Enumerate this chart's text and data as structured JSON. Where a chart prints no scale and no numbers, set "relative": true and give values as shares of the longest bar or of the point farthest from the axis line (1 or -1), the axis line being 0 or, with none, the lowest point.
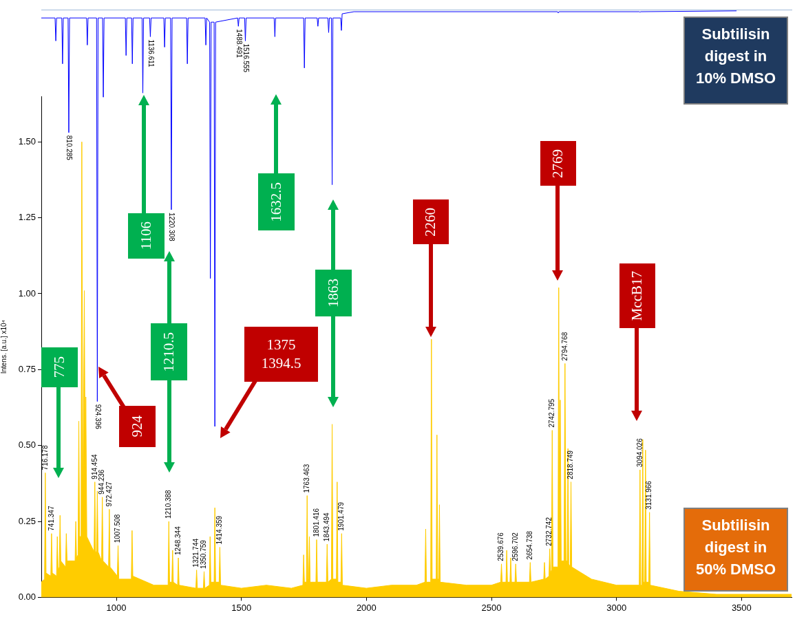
{
  "chart_data": [
    {
      "type": "line",
      "relative": true,
      "tick_labels": false,
      "xlim": [
        700,
        3700
      ],
      "series": [
        {
          "color": "#0000ff",
          "x": [
            700,
            755,
            758,
            761,
            782,
            785,
            788,
            807,
            810,
            813,
            881,
            884,
            887,
            921,
            924,
            927,
            945,
            948,
            951,
            1036,
            1039,
            1042,
            1061,
            1064,
            1067,
            1103,
            1106,
            1109,
            1133,
            1136,
            1139,
            1190,
            1193,
            1196,
            1217,
            1220,
            1223,
            1281,
            1284,
            1287,
            1355,
            1358,
            1361,
            1373,
            1376,
            1379,
            1391,
            1394,
            1397,
            1485,
            1488,
            1491,
            1513,
            1516,
            1519,
            1631,
            1634,
            1637,
            1749,
            1752,
            1755,
            1803,
            1806,
            1809,
            1846,
            1849,
            1852,
            1860,
            1863,
            1866,
            1897,
            1900,
            1903,
            1950,
            2764,
            2767,
            2770,
            3091,
            3094,
            3097,
            3480
          ],
          "values": [
            -0.02,
            -0.02,
            -0.075,
            -0.02,
            -0.02,
            -0.13,
            -0.02,
            -0.02,
            -0.295,
            -0.02,
            -0.02,
            -0.085,
            -0.02,
            -0.02,
            -0.94,
            -0.02,
            -0.02,
            -0.21,
            -0.02,
            -0.02,
            -0.11,
            -0.02,
            -0.02,
            -0.13,
            -0.02,
            -0.02,
            -0.2,
            -0.02,
            -0.02,
            -0.065,
            -0.02,
            -0.02,
            -0.09,
            -0.02,
            -0.02,
            -0.48,
            -0.02,
            -0.02,
            -0.13,
            -0.02,
            -0.02,
            -0.085,
            -0.02,
            -0.03,
            -0.645,
            -0.03,
            -0.03,
            -1,
            -0.03,
            -0.02,
            -0.04,
            -0.02,
            -0.02,
            -0.075,
            -0.02,
            -0.02,
            -0.065,
            -0.02,
            -0.02,
            -0.14,
            -0.02,
            -0.02,
            -0.04,
            -0.02,
            -0.02,
            -0.055,
            -0.02,
            -0.02,
            -0.42,
            -0.02,
            -0.02,
            -0.05,
            -0.01,
            -0.005,
            -0.005,
            -0.008,
            -0.005,
            -0.005,
            -0.006,
            -0.005,
            -0.003
          ]
        }
      ],
      "annotations": [
        {
          "text": "810.285",
          "x": 810,
          "y": -0.295
        },
        {
          "text": "924.396",
          "x": 924,
          "y": -0.94
        },
        {
          "text": "1136.611",
          "x": 1136,
          "y": -0.065
        },
        {
          "text": "1220.308",
          "x": 1220,
          "y": -0.48
        },
        {
          "text": "1488.491",
          "x": 1488,
          "y": -0.04
        },
        {
          "text": "1516.555",
          "x": 1516,
          "y": -0.075
        }
      ]
    },
    {
      "type": "area",
      "ylabel": "Intens. [a.u.] x10⁴",
      "xlim": [
        700,
        3700
      ],
      "xticks": [
        1000,
        1500,
        2000,
        2500,
        3000,
        3500
      ],
      "ylim": [
        0,
        1.65
      ],
      "yticks": [
        {
          "value": 0,
          "label": "0.00"
        },
        {
          "value": 0.25,
          "label": "0.25"
        },
        {
          "value": 0.5,
          "label": "0.50"
        },
        {
          "value": 0.75,
          "label": "0.75"
        },
        {
          "value": 1,
          "label": "1.00"
        },
        {
          "value": 1.25,
          "label": "1.25"
        },
        {
          "value": 1.5,
          "label": "1.50"
        }
      ],
      "series": [
        {
          "color": "#ffcc00",
          "x": [
            700,
            713,
            716,
            719,
            738,
            741,
            744,
            761,
            764,
            767,
            772,
            775,
            778,
            797,
            800,
            803,
            835,
            838,
            841,
            847,
            850,
            853,
            859,
            862,
            866,
            872,
            876,
            878,
            882,
            911,
            914,
            917,
            921,
            924,
            927,
            941,
            944,
            947,
            969,
            972,
            975,
            1004,
            1007,
            1010,
            1060,
            1063,
            1066,
            1150,
            1207,
            1210,
            1213,
            1222,
            1225,
            1228,
            1245,
            1248,
            1251,
            1318,
            1321,
            1324,
            1348,
            1351,
            1354,
            1372,
            1375,
            1378,
            1391,
            1394,
            1397,
            1411,
            1414,
            1417,
            1500,
            1600,
            1700,
            1746,
            1749,
            1752,
            1760,
            1763,
            1766,
            1769,
            1772,
            1775,
            1798,
            1801,
            1804,
            1840,
            1843,
            1846,
            1860,
            1863,
            1866,
            1880,
            1883,
            1886,
            1898,
            1901,
            1904,
            2000,
            2100,
            2200,
            2234,
            2237,
            2240,
            2257,
            2260,
            2263,
            2279,
            2282,
            2285,
            2289,
            2292,
            2295,
            2400,
            2500,
            2537,
            2540,
            2543,
            2558,
            2561,
            2564,
            2574,
            2577,
            2580,
            2594,
            2597,
            2600,
            2652,
            2655,
            2658,
            2709,
            2712,
            2715,
            2730,
            2733,
            2736,
            2740,
            2743,
            2746,
            2766,
            2769,
            2772,
            2775,
            2779,
            2790,
            2794,
            2798,
            2803,
            2806,
            2809,
            2815,
            2818,
            2821,
            2900,
            3000,
            3091,
            3094,
            3097,
            3102,
            3105,
            3108,
            3113,
            3116,
            3119,
            3129,
            3132,
            3135,
            3250,
            3400,
            3700
          ],
          "values": [
            0.05,
            0.06,
            0.41,
            0.08,
            0.07,
            0.21,
            0.08,
            0.07,
            0.2,
            0.09,
            0.1,
            0.27,
            0.12,
            0.1,
            0.21,
            0.12,
            0.12,
            0.25,
            0.13,
            0.14,
            0.58,
            0.2,
            0.2,
            1.5,
            0.25,
            1.01,
            0.3,
            0.66,
            0.2,
            0.15,
            0.38,
            0.15,
            0.15,
            0.35,
            0.15,
            0.12,
            0.33,
            0.12,
            0.1,
            0.29,
            0.1,
            0.07,
            0.17,
            0.06,
            0.06,
            0.22,
            0.07,
            0.04,
            0.04,
            0.25,
            0.05,
            0.05,
            0.155,
            0.05,
            0.04,
            0.13,
            0.04,
            0.03,
            0.09,
            0.03,
            0.03,
            0.085,
            0.03,
            0.04,
            0.2,
            0.05,
            0.05,
            0.295,
            0.05,
            0.05,
            0.165,
            0.04,
            0.03,
            0.04,
            0.03,
            0.04,
            0.14,
            0.05,
            0.05,
            0.335,
            0.06,
            0.06,
            0.2,
            0.05,
            0.05,
            0.19,
            0.05,
            0.05,
            0.175,
            0.05,
            0.06,
            0.57,
            0.06,
            0.06,
            0.38,
            0.05,
            0.05,
            0.21,
            0.04,
            0.03,
            0.04,
            0.04,
            0.05,
            0.225,
            0.05,
            0.05,
            0.85,
            0.06,
            0.06,
            0.535,
            0.06,
            0.06,
            0.305,
            0.05,
            0.04,
            0.04,
            0.05,
            0.11,
            0.05,
            0.05,
            0.155,
            0.05,
            0.05,
            0.13,
            0.05,
            0.05,
            0.11,
            0.05,
            0.05,
            0.115,
            0.05,
            0.06,
            0.115,
            0.06,
            0.07,
            0.16,
            0.08,
            0.09,
            0.55,
            0.1,
            0.1,
            1.02,
            0.12,
            0.65,
            0.12,
            0.12,
            0.77,
            0.12,
            0.12,
            0.49,
            0.11,
            0.1,
            0.38,
            0.1,
            0.06,
            0.04,
            0.04,
            0.42,
            0.04,
            0.04,
            0.52,
            0.05,
            0.05,
            0.485,
            0.05,
            0.05,
            0.28,
            0.04,
            0.02,
            0.01,
            0.01
          ]
        }
      ],
      "annotations": [
        {
          "text": "716.178",
          "x": 716,
          "y": 0.41
        },
        {
          "text": "741.347",
          "x": 741,
          "y": 0.21
        },
        {
          "text": "914.454",
          "x": 914,
          "y": 0.38
        },
        {
          "text": "944.236",
          "x": 944,
          "y": 0.33
        },
        {
          "text": "972.427",
          "x": 972,
          "y": 0.29
        },
        {
          "text": "1007.508",
          "x": 1007,
          "y": 0.17
        },
        {
          "text": "1210.388",
          "x": 1210,
          "y": 0.25
        },
        {
          "text": "1248.344",
          "x": 1248,
          "y": 0.13
        },
        {
          "text": "1321.744",
          "x": 1321,
          "y": 0.09
        },
        {
          "text": "1350.759",
          "x": 1351,
          "y": 0.085
        },
        {
          "text": "1414.359",
          "x": 1414,
          "y": 0.165
        },
        {
          "text": "1763.463",
          "x": 1763,
          "y": 0.335
        },
        {
          "text": "1801.416",
          "x": 1801,
          "y": 0.19
        },
        {
          "text": "1843.494",
          "x": 1843,
          "y": 0.175
        },
        {
          "text": "1901.479",
          "x": 1901,
          "y": 0.21
        },
        {
          "text": "2539.676",
          "x": 2540,
          "y": 0.11
        },
        {
          "text": "2596.702",
          "x": 2597,
          "y": 0.11
        },
        {
          "text": "2654.738",
          "x": 2655,
          "y": 0.115
        },
        {
          "text": "2732.742",
          "x": 2733,
          "y": 0.16
        },
        {
          "text": "2742.795",
          "x": 2743,
          "y": 0.55
        },
        {
          "text": "2794.768",
          "x": 2794,
          "y": 0.77
        },
        {
          "text": "2818.749",
          "x": 2818,
          "y": 0.38
        },
        {
          "text": "3094.026",
          "x": 3094,
          "y": 0.42
        },
        {
          "text": "3131.966",
          "x": 3132,
          "y": 0.28
        },
        "775",
        "924",
        "1106",
        "1210.5",
        "1375\n1394.5",
        "1632.5",
        "1863",
        "2260",
        "2769",
        "MccB17",
        "Subtilisin digest in 10% DMSO",
        "Subtilisin digest in 50% DMSO"
      ]
    }
  ]
}
